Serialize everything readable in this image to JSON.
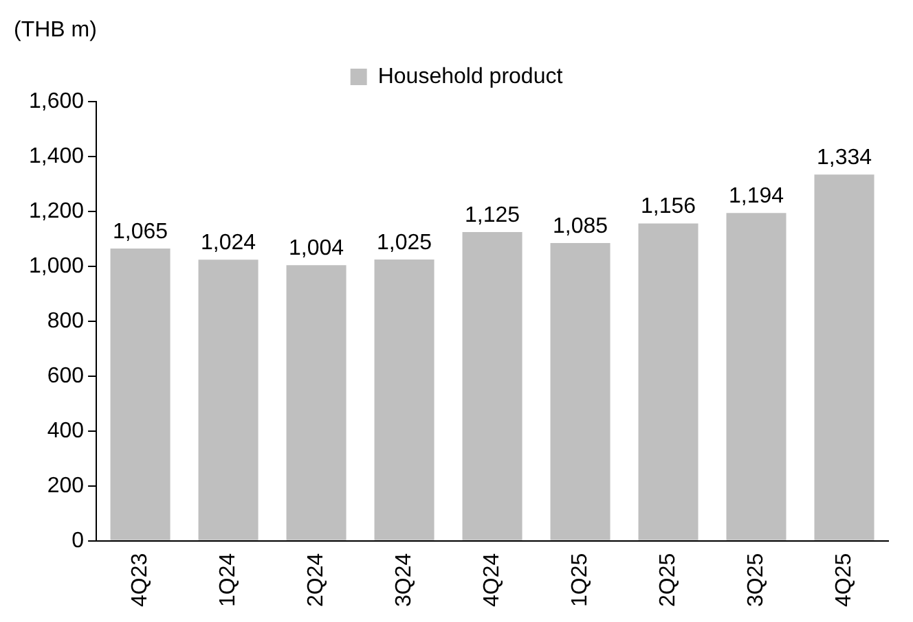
{
  "chart_data": {
    "type": "bar",
    "ylabel": "(THB m)",
    "legend": "top",
    "grid": false,
    "categories": [
      "4Q23",
      "1Q24",
      "2Q24",
      "3Q24",
      "4Q24",
      "1Q25",
      "2Q25",
      "3Q25",
      "4Q25"
    ],
    "series": [
      {
        "name": "Household product",
        "color": "#bfbfbf",
        "values": [
          1065,
          1024,
          1004,
          1025,
          1125,
          1085,
          1156,
          1194,
          1334
        ],
        "value_labels": [
          "1,065",
          "1,024",
          "1,004",
          "1,025",
          "1,125",
          "1,085",
          "1,156",
          "1,194",
          "1,334"
        ]
      }
    ],
    "ylim": [
      0,
      1600
    ],
    "yticks": [
      0,
      200,
      400,
      600,
      800,
      {
        "value": 1000,
        "label": "1,000"
      },
      {
        "value": 1200,
        "label": "1,200"
      },
      {
        "value": 1400,
        "label": "1,400"
      },
      {
        "value": 1600,
        "label": "1,600"
      }
    ]
  }
}
